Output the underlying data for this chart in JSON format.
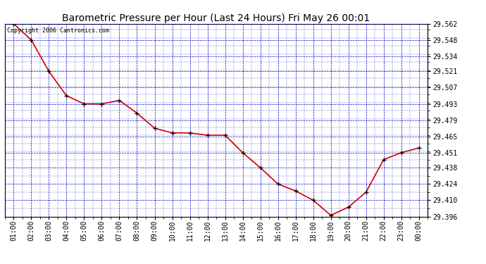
{
  "title": "Barometric Pressure per Hour (Last 24 Hours) Fri May 26 00:01",
  "copyright": "Copyright 2006 Cantronics.com",
  "x_labels": [
    "01:00",
    "02:00",
    "03:00",
    "04:00",
    "05:00",
    "06:00",
    "07:00",
    "08:00",
    "09:00",
    "10:00",
    "11:00",
    "12:00",
    "13:00",
    "14:00",
    "15:00",
    "16:00",
    "17:00",
    "18:00",
    "19:00",
    "20:00",
    "21:00",
    "22:00",
    "23:00",
    "00:00"
  ],
  "y_values": [
    29.562,
    29.548,
    29.521,
    29.5,
    29.493,
    29.493,
    29.496,
    29.485,
    29.472,
    29.468,
    29.468,
    29.466,
    29.466,
    29.451,
    29.438,
    29.424,
    29.418,
    29.41,
    29.397,
    29.404,
    29.417,
    29.445,
    29.451,
    29.455
  ],
  "ylim_min": 29.396,
  "ylim_max": 29.562,
  "yticks": [
    29.396,
    29.41,
    29.424,
    29.438,
    29.451,
    29.465,
    29.479,
    29.493,
    29.507,
    29.521,
    29.534,
    29.548,
    29.562
  ],
  "line_color": "#cc0000",
  "marker_color": "#000000",
  "background_color": "#ffffff",
  "plot_background": "#ffffff",
  "grid_color": "#0000cc",
  "title_fontsize": 10,
  "tick_fontsize": 7,
  "copyright_fontsize": 6
}
